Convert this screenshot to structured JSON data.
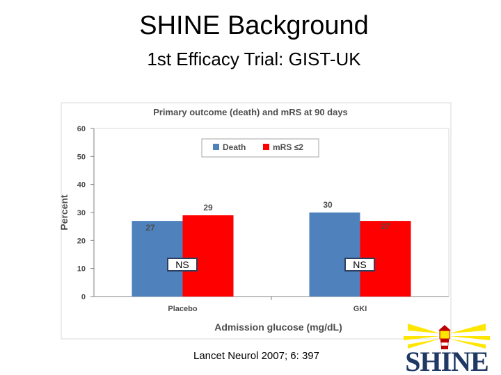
{
  "slide": {
    "title": "SHINE Background",
    "subtitle": "1st Efficacy Trial: GIST-UK",
    "citation_journal": "Lancet Neurol",
    "citation_rest": " 2007; 6: 397"
  },
  "logo": {
    "text": "SHINE",
    "icon": "lighthouse-icon"
  },
  "chart_data": {
    "type": "bar",
    "title": "Primary outcome (death) and mRS at 90 days",
    "xlabel": "Admission glucose (mg/dL)",
    "ylabel": "Percent",
    "ylim": [
      0,
      60
    ],
    "yticks": [
      0,
      10,
      20,
      30,
      40,
      50,
      60
    ],
    "categories": [
      "Placebo",
      "GKI"
    ],
    "series": [
      {
        "name": "Death",
        "values": [
          27,
          30
        ],
        "color": "#4f81bd"
      },
      {
        "name": "mRS ≤2",
        "values": [
          29,
          27
        ],
        "color": "#ff0000"
      }
    ],
    "annotations": [
      "NS",
      "NS"
    ],
    "legend": "top-center",
    "grid": false
  }
}
